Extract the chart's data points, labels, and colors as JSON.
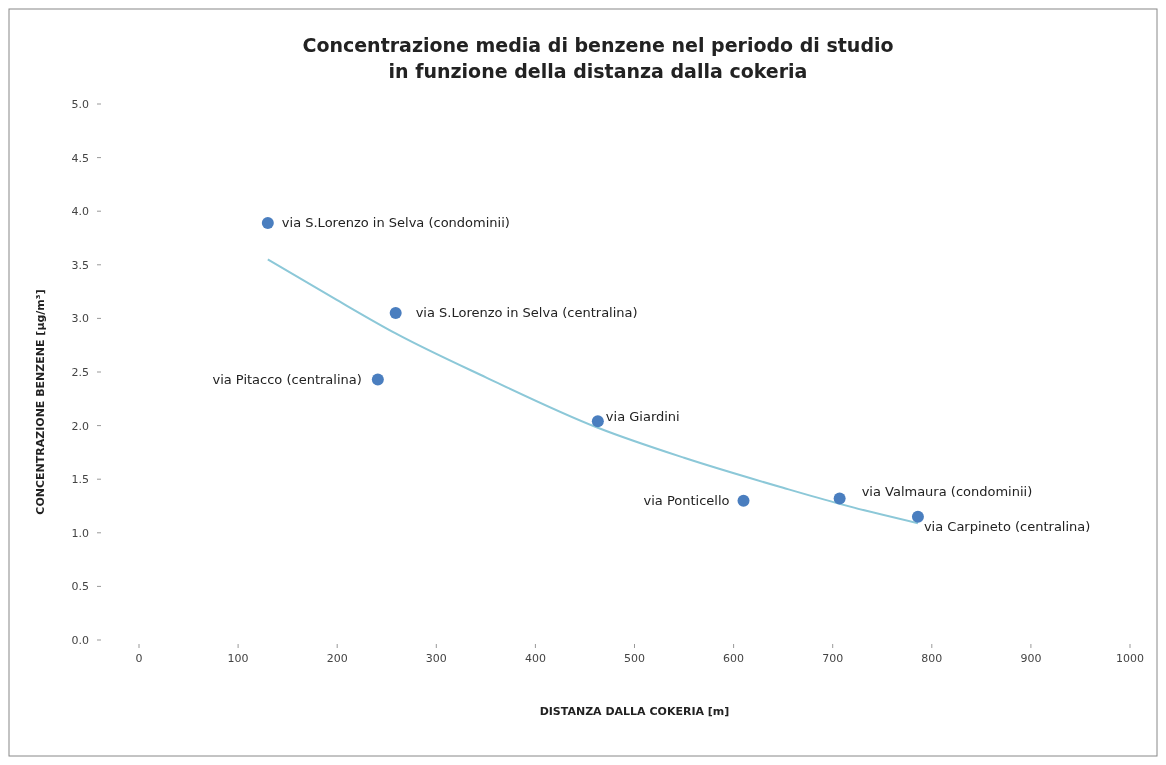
{
  "chart_data": {
    "type": "scatter",
    "title": "Concentrazione media di benzene nel periodo di studio\nin funzione della distanza dalla cokeria",
    "xlabel": "DISTANZA DALLA COKERIA [m]",
    "ylabel": "CONCENTRAZIONE BENZENE [µg/m³]",
    "xlim": [
      0,
      1000
    ],
    "xticks": [
      0,
      100,
      200,
      300,
      400,
      500,
      600,
      700,
      800,
      900,
      1000
    ],
    "ylim": [
      0,
      5
    ],
    "yticks": [
      {
        "value": 0,
        "label": "0.0"
      },
      {
        "value": 0.5,
        "label": "0.5"
      },
      {
        "value": 1,
        "label": "1.0"
      },
      {
        "value": 1.5,
        "label": "1.5"
      },
      {
        "value": 2,
        "label": "2.0"
      },
      {
        "value": 2.5,
        "label": "2.5"
      },
      {
        "value": 3,
        "label": "3.0"
      },
      {
        "value": 3.5,
        "label": "3.5"
      },
      {
        "value": 4,
        "label": "4.0"
      },
      {
        "value": 4.5,
        "label": "4.5"
      },
      {
        "value": 5,
        "label": "5.0"
      }
    ],
    "grid": false,
    "series": [
      {
        "marker": "circle",
        "color": "#4a7ebf",
        "x": [
          130,
          259,
          241,
          463,
          610,
          707,
          786
        ],
        "values": [
          3.89,
          3.05,
          2.43,
          2.04,
          1.3,
          1.32,
          1.15
        ]
      },
      {
        "type": "line",
        "color": "#8cc8d8",
        "x": [
          130,
          200,
          259,
          350,
          463,
          550,
          650,
          707,
          786
        ],
        "values": [
          3.55,
          3.17,
          2.86,
          2.45,
          1.98,
          1.7,
          1.42,
          1.27,
          1.09
        ]
      }
    ],
    "annotations": [
      {
        "text": "via S.Lorenzo in Selva (condominii)",
        "x": 130,
        "y": 3.89
      },
      {
        "text": "via S.Lorenzo in Selva (centralina)",
        "x": 259,
        "y": 3.05
      },
      {
        "text": "via Pitacco (centralina)",
        "x": 241,
        "y": 2.43
      },
      {
        "text": "via Giardini",
        "x": 463,
        "y": 2.04
      },
      {
        "text": "via Ponticello",
        "x": 610,
        "y": 1.3
      },
      {
        "text": "via Valmaura (condominii)",
        "x": 707,
        "y": 1.32
      },
      {
        "text": "via Carpineto (centralina)",
        "x": 786,
        "y": 1.15
      }
    ]
  }
}
